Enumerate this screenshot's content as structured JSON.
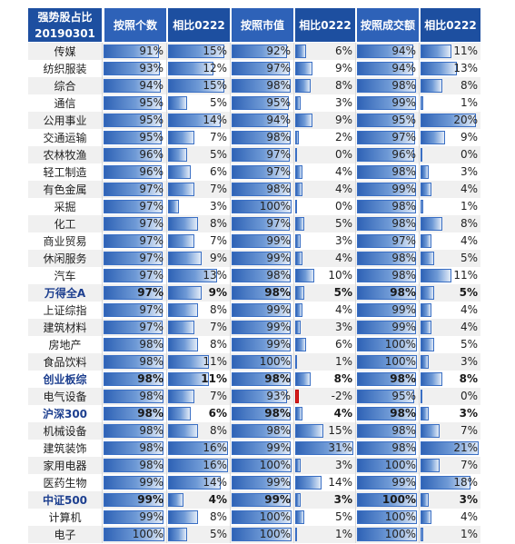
{
  "chart_data": {
    "type": "table",
    "headers": [
      "强势股占比\n20190301",
      "按照个数",
      "相比0222",
      "按照市值",
      "相比0222",
      "按照成交额",
      "相比0222"
    ],
    "bold_rows": [
      "万得全A",
      "创业板综",
      "沪深300",
      "中证500"
    ],
    "rows": [
      {
        "name": "传媒",
        "values": [
          "91%",
          "15%",
          "92%",
          "6%",
          "94%",
          "11%"
        ]
      },
      {
        "name": "纺织服装",
        "values": [
          "93%",
          "12%",
          "97%",
          "9%",
          "94%",
          "13%"
        ]
      },
      {
        "name": "综合",
        "values": [
          "94%",
          "15%",
          "98%",
          "8%",
          "98%",
          "8%"
        ]
      },
      {
        "name": "通信",
        "values": [
          "95%",
          "5%",
          "95%",
          "3%",
          "99%",
          "1%"
        ]
      },
      {
        "name": "公用事业",
        "values": [
          "95%",
          "14%",
          "94%",
          "9%",
          "95%",
          "20%"
        ]
      },
      {
        "name": "交通运输",
        "values": [
          "95%",
          "7%",
          "98%",
          "2%",
          "97%",
          "9%"
        ]
      },
      {
        "name": "农林牧渔",
        "values": [
          "96%",
          "5%",
          "97%",
          "0%",
          "96%",
          "0%"
        ]
      },
      {
        "name": "轻工制造",
        "values": [
          "96%",
          "6%",
          "97%",
          "4%",
          "98%",
          "3%"
        ]
      },
      {
        "name": "有色金属",
        "values": [
          "97%",
          "7%",
          "98%",
          "4%",
          "99%",
          "4%"
        ]
      },
      {
        "name": "采掘",
        "values": [
          "97%",
          "3%",
          "100%",
          "0%",
          "98%",
          "1%"
        ]
      },
      {
        "name": "化工",
        "values": [
          "97%",
          "8%",
          "97%",
          "5%",
          "98%",
          "8%"
        ]
      },
      {
        "name": "商业贸易",
        "values": [
          "97%",
          "7%",
          "99%",
          "3%",
          "97%",
          "4%"
        ]
      },
      {
        "name": "休闲服务",
        "values": [
          "97%",
          "9%",
          "99%",
          "4%",
          "98%",
          "5%"
        ]
      },
      {
        "name": "汽车",
        "values": [
          "97%",
          "13%",
          "98%",
          "10%",
          "98%",
          "11%"
        ]
      },
      {
        "name": "万得全A",
        "values": [
          "97%",
          "9%",
          "98%",
          "5%",
          "98%",
          "5%"
        ]
      },
      {
        "name": "上证综指",
        "values": [
          "97%",
          "8%",
          "99%",
          "4%",
          "99%",
          "4%"
        ]
      },
      {
        "name": "建筑材料",
        "values": [
          "97%",
          "7%",
          "99%",
          "3%",
          "99%",
          "4%"
        ]
      },
      {
        "name": "房地产",
        "values": [
          "98%",
          "8%",
          "99%",
          "6%",
          "100%",
          "5%"
        ]
      },
      {
        "name": "食品饮料",
        "values": [
          "98%",
          "11%",
          "100%",
          "1%",
          "100%",
          "3%"
        ]
      },
      {
        "name": "创业板综",
        "values": [
          "98%",
          "11%",
          "98%",
          "8%",
          "98%",
          "8%"
        ]
      },
      {
        "name": "电气设备",
        "values": [
          "98%",
          "7%",
          "93%",
          "-2%",
          "95%",
          "0%"
        ]
      },
      {
        "name": "沪深300",
        "values": [
          "98%",
          "6%",
          "98%",
          "4%",
          "98%",
          "3%"
        ]
      },
      {
        "name": "机械设备",
        "values": [
          "98%",
          "8%",
          "98%",
          "15%",
          "98%",
          "7%"
        ]
      },
      {
        "name": "建筑装饰",
        "values": [
          "98%",
          "16%",
          "99%",
          "31%",
          "98%",
          "21%"
        ]
      },
      {
        "name": "家用电器",
        "values": [
          "98%",
          "16%",
          "100%",
          "3%",
          "100%",
          "7%"
        ]
      },
      {
        "name": "医药生物",
        "values": [
          "99%",
          "14%",
          "99%",
          "14%",
          "99%",
          "18%"
        ]
      },
      {
        "name": "中证500",
        "values": [
          "99%",
          "4%",
          "99%",
          "3%",
          "100%",
          "3%"
        ]
      },
      {
        "name": "计算机",
        "values": [
          "99%",
          "8%",
          "100%",
          "5%",
          "100%",
          "4%"
        ]
      },
      {
        "name": "电子",
        "values": [
          "100%",
          "5%",
          "100%",
          "1%",
          "100%",
          "1%"
        ]
      }
    ]
  }
}
